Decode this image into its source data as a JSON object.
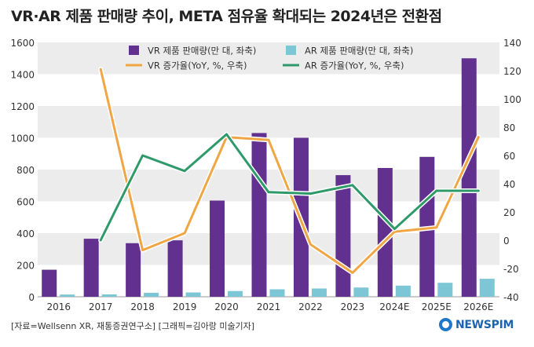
{
  "title": "VR·AR 제품 판매량 추이, META 점유율 확대되는 2024년은 전환점",
  "source": "[자료=Wellsenn XR, 재통증권연구소] [그래픽=김아랑 미술기자]",
  "logo_text": "NEWSPIM",
  "colors": {
    "vr_bar": "#62318f",
    "ar_bar": "#7cc6d6",
    "vr_line": "#f0a644",
    "ar_line": "#2e9a6a",
    "band": "#ececec"
  },
  "chart_data": {
    "type": "bar",
    "categories": [
      "2016",
      "2017",
      "2018",
      "2019",
      "2020",
      "2021",
      "2022",
      "2023",
      "2024E",
      "2025E",
      "2026E"
    ],
    "y_left": {
      "min": 0,
      "max": 1600,
      "ticks": [
        0,
        200,
        400,
        600,
        800,
        1000,
        1200,
        1400,
        1600
      ]
    },
    "y_right": {
      "min": -40,
      "max": 140,
      "ticks": [
        -40,
        -20,
        0,
        20,
        40,
        60,
        80,
        100,
        120,
        140
      ]
    },
    "grid": "alternating horizontal bands",
    "legend_position": "top-center",
    "series": [
      {
        "name": "VR 제품 판매량(만 대, 좌축)",
        "type": "bar",
        "axis": "left",
        "values": [
          170,
          365,
          337,
          355,
          605,
          1030,
          1000,
          765,
          810,
          880,
          1500
        ]
      },
      {
        "name": "AR 제품 판매량(만 대, 좌축)",
        "type": "bar",
        "axis": "left",
        "values": [
          14,
          15,
          25,
          27,
          36,
          47,
          52,
          58,
          70,
          88,
          113
        ]
      },
      {
        "name": "VR 증가율(YoY, %, 우축)",
        "type": "line",
        "axis": "right",
        "values": [
          null,
          121,
          -7,
          5,
          73,
          71,
          -3,
          -23,
          6,
          9,
          73
        ]
      },
      {
        "name": "AR 증가율(YoY, %, 우축)",
        "type": "line",
        "axis": "right",
        "values": [
          null,
          0,
          60,
          49,
          75,
          34,
          33,
          39,
          8,
          35,
          35
        ]
      }
    ]
  }
}
